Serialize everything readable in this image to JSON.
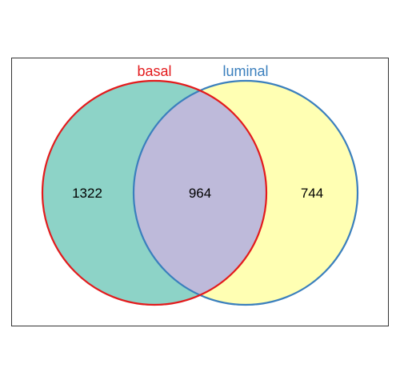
{
  "sets": [
    {
      "label": "basal",
      "fill_color": "#8dd3c7",
      "stroke_color": "#e31a1c",
      "label_color": "#e31a1c"
    },
    {
      "label": "luminal",
      "fill_color": "#ffffb3",
      "stroke_color": "#3a7fbd",
      "label_color": "#3a7fbd"
    }
  ],
  "intersection_color": "#bebada",
  "counts": {
    "basal_only": "1322",
    "intersection": "964",
    "luminal_only": "744"
  }
}
